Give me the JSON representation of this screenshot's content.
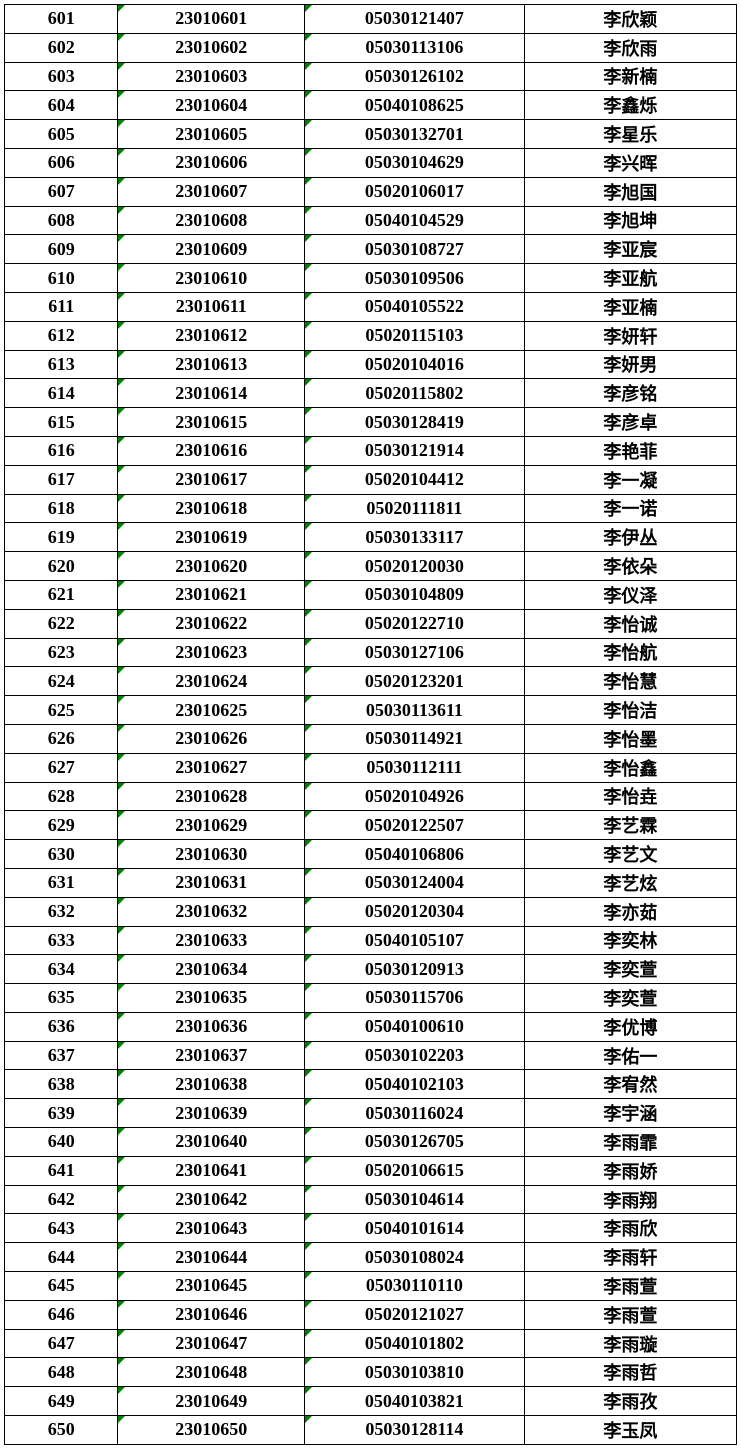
{
  "table": {
    "background_color": "#ffffff",
    "border_color": "#000000",
    "marker_color": "#008000",
    "font_weight": "bold",
    "font_size": 18,
    "row_height": 28.8,
    "columns": [
      {
        "name": "seq",
        "width_pct": 15.5,
        "align": "center",
        "has_marker": false
      },
      {
        "name": "id",
        "width_pct": 25.5,
        "align": "center",
        "has_marker": true
      },
      {
        "name": "code",
        "width_pct": 30,
        "align": "center",
        "has_marker": true
      },
      {
        "name": "name",
        "width_pct": 29,
        "align": "center",
        "has_marker": false
      }
    ],
    "rows": [
      {
        "seq": "601",
        "id": "23010601",
        "code": "05030121407",
        "name": "李欣颖"
      },
      {
        "seq": "602",
        "id": "23010602",
        "code": "05030113106",
        "name": "李欣雨"
      },
      {
        "seq": "603",
        "id": "23010603",
        "code": "05030126102",
        "name": "李新楠"
      },
      {
        "seq": "604",
        "id": "23010604",
        "code": "05040108625",
        "name": "李鑫烁"
      },
      {
        "seq": "605",
        "id": "23010605",
        "code": "05030132701",
        "name": "李星乐"
      },
      {
        "seq": "606",
        "id": "23010606",
        "code": "05030104629",
        "name": "李兴晖"
      },
      {
        "seq": "607",
        "id": "23010607",
        "code": "05020106017",
        "name": "李旭国"
      },
      {
        "seq": "608",
        "id": "23010608",
        "code": "05040104529",
        "name": "李旭坤"
      },
      {
        "seq": "609",
        "id": "23010609",
        "code": "05030108727",
        "name": "李亚宸"
      },
      {
        "seq": "610",
        "id": "23010610",
        "code": "05030109506",
        "name": "李亚航"
      },
      {
        "seq": "611",
        "id": "23010611",
        "code": "05040105522",
        "name": "李亚楠"
      },
      {
        "seq": "612",
        "id": "23010612",
        "code": "05020115103",
        "name": "李妍轩"
      },
      {
        "seq": "613",
        "id": "23010613",
        "code": "05020104016",
        "name": "李妍男"
      },
      {
        "seq": "614",
        "id": "23010614",
        "code": "05020115802",
        "name": "李彦铭"
      },
      {
        "seq": "615",
        "id": "23010615",
        "code": "05030128419",
        "name": "李彦卓"
      },
      {
        "seq": "616",
        "id": "23010616",
        "code": "05030121914",
        "name": "李艳菲"
      },
      {
        "seq": "617",
        "id": "23010617",
        "code": "05020104412",
        "name": "李一凝"
      },
      {
        "seq": "618",
        "id": "23010618",
        "code": "05020111811",
        "name": "李一诺"
      },
      {
        "seq": "619",
        "id": "23010619",
        "code": "05030133117",
        "name": "李伊丛"
      },
      {
        "seq": "620",
        "id": "23010620",
        "code": "05020120030",
        "name": "李依朵"
      },
      {
        "seq": "621",
        "id": "23010621",
        "code": "05030104809",
        "name": "李仪泽"
      },
      {
        "seq": "622",
        "id": "23010622",
        "code": "05020122710",
        "name": "李怡诚"
      },
      {
        "seq": "623",
        "id": "23010623",
        "code": "05030127106",
        "name": "李怡航"
      },
      {
        "seq": "624",
        "id": "23010624",
        "code": "05020123201",
        "name": "李怡慧"
      },
      {
        "seq": "625",
        "id": "23010625",
        "code": "05030113611",
        "name": "李怡洁"
      },
      {
        "seq": "626",
        "id": "23010626",
        "code": "05030114921",
        "name": "李怡墨"
      },
      {
        "seq": "627",
        "id": "23010627",
        "code": "05030112111",
        "name": "李怡鑫"
      },
      {
        "seq": "628",
        "id": "23010628",
        "code": "05020104926",
        "name": "李怡垚"
      },
      {
        "seq": "629",
        "id": "23010629",
        "code": "05020122507",
        "name": "李艺霖"
      },
      {
        "seq": "630",
        "id": "23010630",
        "code": "05040106806",
        "name": "李艺文"
      },
      {
        "seq": "631",
        "id": "23010631",
        "code": "05030124004",
        "name": "李艺炫"
      },
      {
        "seq": "632",
        "id": "23010632",
        "code": "05020120304",
        "name": "李亦茹"
      },
      {
        "seq": "633",
        "id": "23010633",
        "code": "05040105107",
        "name": "李奕林"
      },
      {
        "seq": "634",
        "id": "23010634",
        "code": "05030120913",
        "name": "李奕萱"
      },
      {
        "seq": "635",
        "id": "23010635",
        "code": "05030115706",
        "name": "李奕萱"
      },
      {
        "seq": "636",
        "id": "23010636",
        "code": "05040100610",
        "name": "李优博"
      },
      {
        "seq": "637",
        "id": "23010637",
        "code": "05030102203",
        "name": "李佑一"
      },
      {
        "seq": "638",
        "id": "23010638",
        "code": "05040102103",
        "name": "李宥然"
      },
      {
        "seq": "639",
        "id": "23010639",
        "code": "05030116024",
        "name": "李宇涵"
      },
      {
        "seq": "640",
        "id": "23010640",
        "code": "05030126705",
        "name": "李雨霏"
      },
      {
        "seq": "641",
        "id": "23010641",
        "code": "05020106615",
        "name": "李雨娇"
      },
      {
        "seq": "642",
        "id": "23010642",
        "code": "05030104614",
        "name": "李雨翔"
      },
      {
        "seq": "643",
        "id": "23010643",
        "code": "05040101614",
        "name": "李雨欣"
      },
      {
        "seq": "644",
        "id": "23010644",
        "code": "05030108024",
        "name": "李雨轩"
      },
      {
        "seq": "645",
        "id": "23010645",
        "code": "05030110110",
        "name": "李雨萱"
      },
      {
        "seq": "646",
        "id": "23010646",
        "code": "05020121027",
        "name": "李雨萱"
      },
      {
        "seq": "647",
        "id": "23010647",
        "code": "05040101802",
        "name": "李雨璇"
      },
      {
        "seq": "648",
        "id": "23010648",
        "code": "05030103810",
        "name": "李雨哲"
      },
      {
        "seq": "649",
        "id": "23010649",
        "code": "05040103821",
        "name": "李雨孜"
      },
      {
        "seq": "650",
        "id": "23010650",
        "code": "05030128114",
        "name": "李玉凤"
      }
    ]
  }
}
